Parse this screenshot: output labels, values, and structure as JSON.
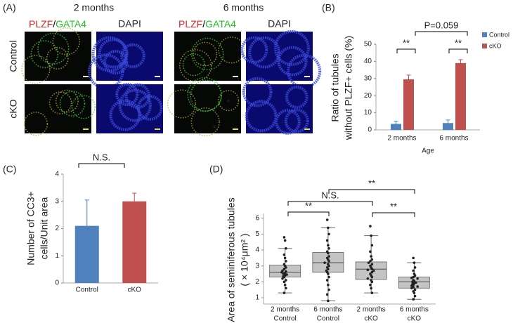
{
  "image_panel": {
    "panel_label": "(A)",
    "columns": [
      "2 months",
      "6 months"
    ],
    "stains": {
      "plzf": "PLZF",
      "slash": "/",
      "gata4": "GATA4",
      "dapi": "DAPI"
    },
    "rows": [
      "Control",
      "cKO"
    ],
    "asterisk": "*"
  },
  "chart_data": [
    {
      "type": "bar",
      "panel_label": "(B)",
      "ylabel": [
        "Ratio of tubules",
        "without PLZF+ cells (%)"
      ],
      "xlabel": "Age",
      "categories": [
        "2 months",
        "6 months"
      ],
      "series": [
        {
          "name": "Control",
          "color": "#4f81bd",
          "values": [
            3.5,
            4
          ],
          "errors": [
            1.5,
            1.8
          ]
        },
        {
          "name": "cKO",
          "color": "#c0504d",
          "values": [
            29.5,
            39
          ],
          "errors": [
            2.5,
            2
          ]
        }
      ],
      "ylim": [
        0,
        50
      ],
      "yticks": [
        0,
        10,
        20,
        30,
        40,
        50
      ],
      "annotations": [
        "**",
        "**",
        "P=0.059"
      ]
    },
    {
      "type": "bar",
      "panel_label": "(C)",
      "ylabel": [
        "Number of CC3+",
        "cells/Unit area"
      ],
      "categories": [
        "Control",
        "cKO"
      ],
      "values": [
        2.1,
        3.0
      ],
      "errors": [
        0.95,
        0.3
      ],
      "colors": [
        "#4f81bd",
        "#c0504d"
      ],
      "ylim": [
        0,
        4
      ],
      "yticks": [
        0,
        1,
        2,
        3,
        4
      ],
      "annotations": [
        "N.S."
      ]
    },
    {
      "type": "box",
      "panel_label": "(D)",
      "ylabel": [
        "Area of seminiferous tubules",
        "( × 10⁴μm² )"
      ],
      "categories": [
        [
          "2 months",
          "Control"
        ],
        [
          "6 months",
          "Control"
        ],
        [
          "2 months",
          "cKO"
        ],
        [
          "6 months",
          "cKO"
        ]
      ],
      "boxes": [
        {
          "low": 1.3,
          "q1": 2.3,
          "median": 2.6,
          "q3": 3.05,
          "high": 4.1
        },
        {
          "low": 0.8,
          "q1": 2.6,
          "median": 3.2,
          "q3": 3.85,
          "high": 5.4
        },
        {
          "low": 1.3,
          "q1": 2.15,
          "median": 2.8,
          "q3": 3.25,
          "high": 4.9
        },
        {
          "low": 0.9,
          "q1": 1.6,
          "median": 2.0,
          "q3": 2.3,
          "high": 3.2
        }
      ],
      "points": [
        [
          4.8,
          4.6,
          4.1,
          3.7,
          3.5,
          3.3,
          3.1,
          3.0,
          2.9,
          2.8,
          2.7,
          2.65,
          2.6,
          2.55,
          2.5,
          2.45,
          2.4,
          2.35,
          2.3,
          2.2,
          2.1,
          2.0,
          1.8,
          1.6,
          1.3
        ],
        [
          5.9,
          5.4,
          5.0,
          4.6,
          4.3,
          4.1,
          3.9,
          3.8,
          3.6,
          3.5,
          3.4,
          3.3,
          3.2,
          3.1,
          3.0,
          2.9,
          2.8,
          2.7,
          2.6,
          2.5,
          2.3,
          2.1,
          1.8,
          1.5,
          1.2,
          0.8
        ],
        [
          5.5,
          4.9,
          4.3,
          3.9,
          3.6,
          3.4,
          3.3,
          3.2,
          3.1,
          3.0,
          2.9,
          2.8,
          2.75,
          2.7,
          2.6,
          2.5,
          2.4,
          2.3,
          2.2,
          2.1,
          2.0,
          1.8,
          1.6,
          1.3
        ],
        [
          3.5,
          3.2,
          2.9,
          2.7,
          2.5,
          2.4,
          2.3,
          2.25,
          2.2,
          2.1,
          2.05,
          2.0,
          1.95,
          1.9,
          1.85,
          1.8,
          1.75,
          1.7,
          1.65,
          1.6,
          1.5,
          1.4,
          1.3,
          1.1,
          0.9
        ]
      ],
      "ylim": [
        0.6,
        6.3
      ],
      "yticks": [
        1,
        2,
        3,
        4,
        5,
        6
      ],
      "annotations": [
        "**",
        "N.S.",
        "**",
        "**"
      ]
    }
  ]
}
